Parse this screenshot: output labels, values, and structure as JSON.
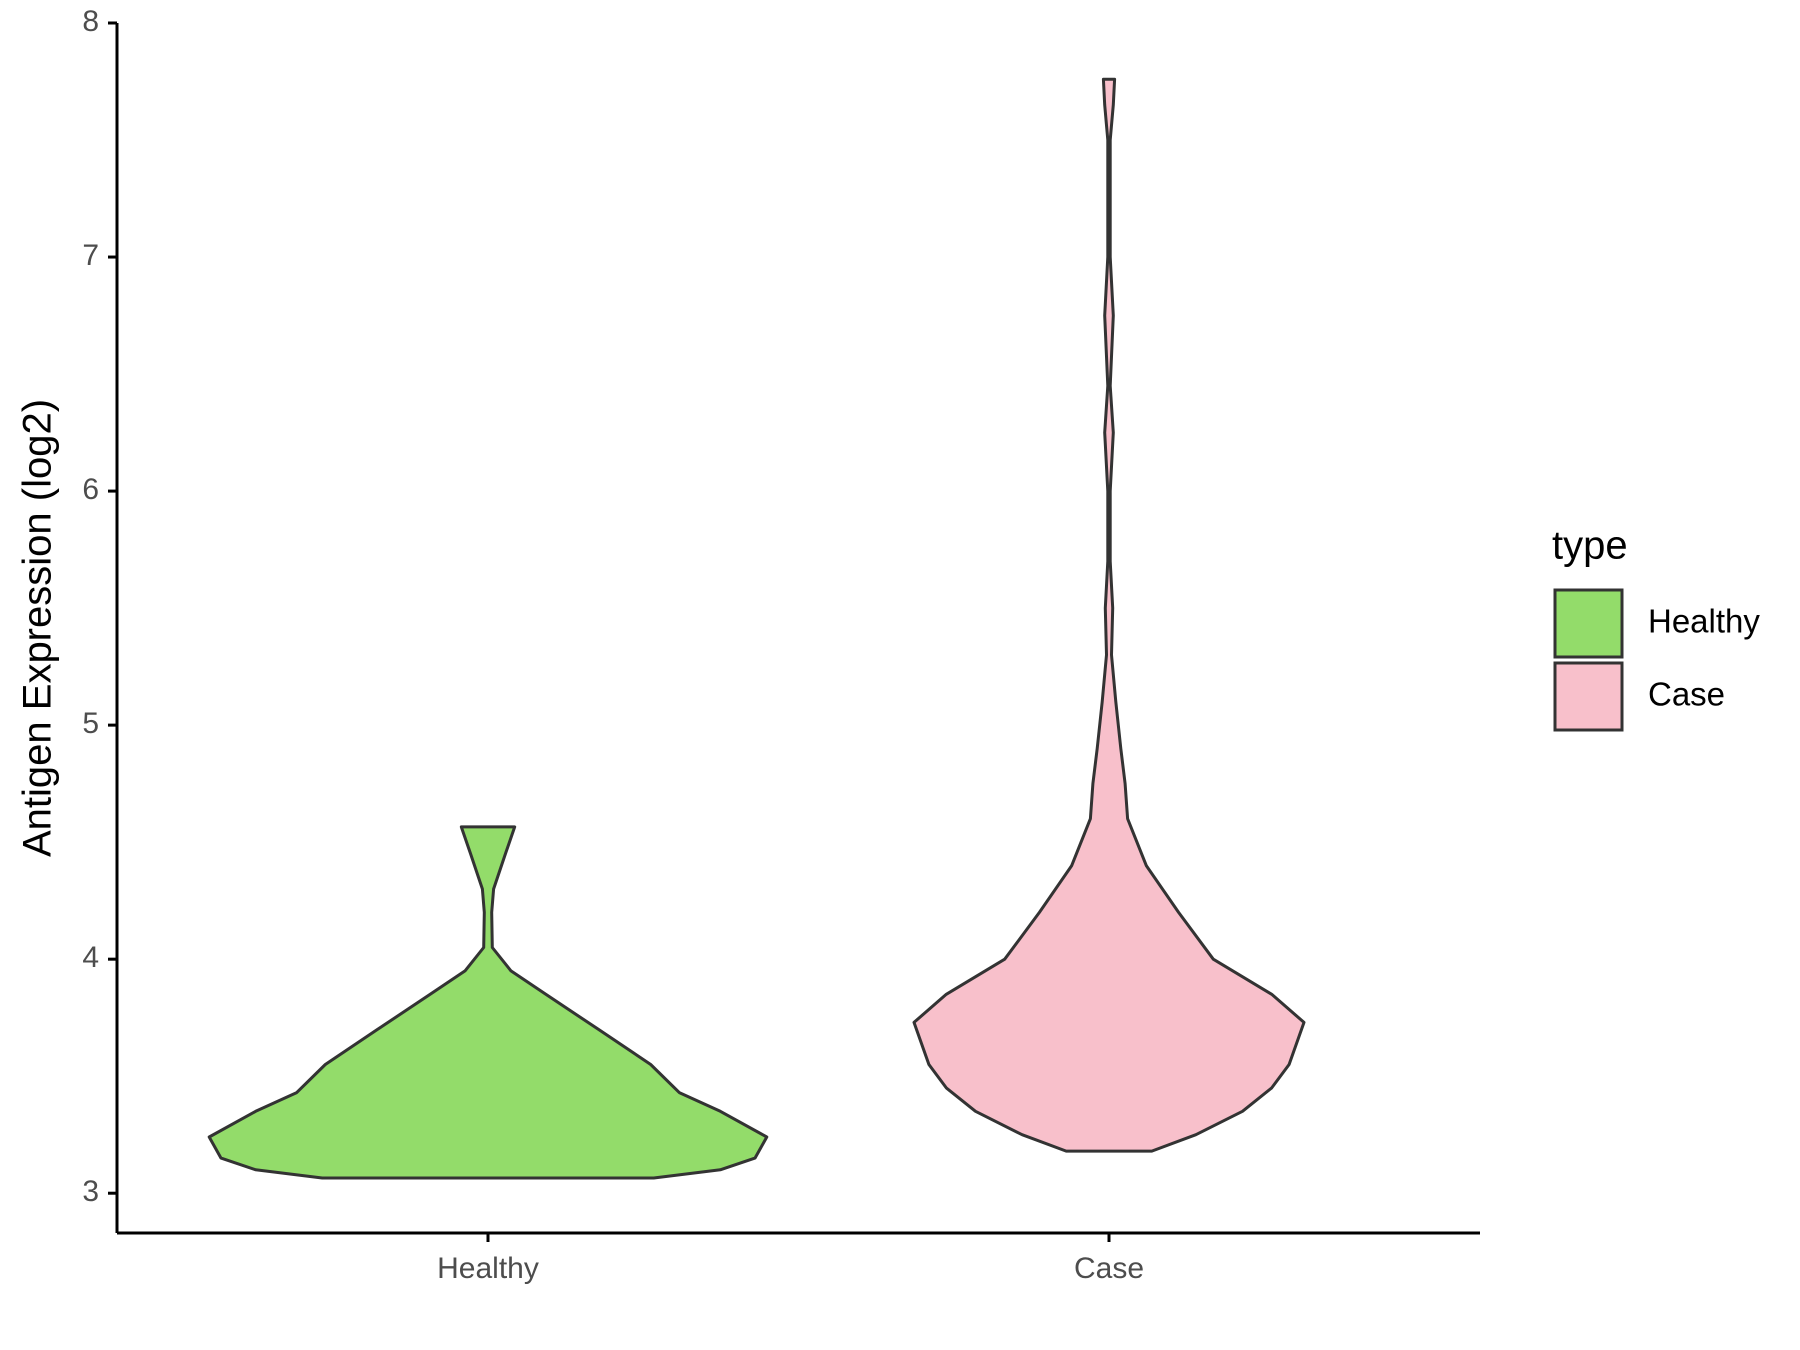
{
  "chart_data": {
    "type": "violin",
    "y_label": "Antigen Expression (log2)",
    "categories": [
      "Healthy",
      "Case"
    ],
    "ylim": [
      2.83,
      8
    ],
    "yticks": [
      3,
      4,
      5,
      6,
      7,
      8
    ],
    "legend_title": "type",
    "legend_position": "right",
    "series": [
      {
        "name": "Healthy",
        "color": "#93dc6a",
        "y": [
          3.065,
          3.1,
          3.15,
          3.24,
          3.35,
          3.43,
          3.55,
          3.7,
          3.85,
          3.95,
          4.05,
          4.2,
          4.3,
          4.45,
          4.565
        ],
        "half_width": [
          0.267,
          0.374,
          0.43,
          0.449,
          0.374,
          0.308,
          0.262,
          0.178,
          0.093,
          0.037,
          0.007,
          0.006,
          0.009,
          0.028,
          0.043
        ]
      },
      {
        "name": "Case",
        "color": "#f8c0cb",
        "y": [
          3.18,
          3.25,
          3.35,
          3.45,
          3.55,
          3.73,
          3.85,
          4.0,
          4.2,
          4.4,
          4.6,
          4.75,
          4.9,
          5.1,
          5.3,
          5.5,
          5.7,
          6.0,
          6.25,
          6.45,
          6.75,
          7.0,
          7.5,
          7.65,
          7.76
        ],
        "half_width": [
          0.069,
          0.14,
          0.215,
          0.262,
          0.29,
          0.314,
          0.262,
          0.168,
          0.112,
          0.06,
          0.03,
          0.026,
          0.019,
          0.011,
          0.004,
          0.006,
          0.002,
          0.002,
          0.007,
          0.002,
          0.007,
          0.002,
          0.002,
          0.007,
          0.009
        ]
      }
    ]
  }
}
